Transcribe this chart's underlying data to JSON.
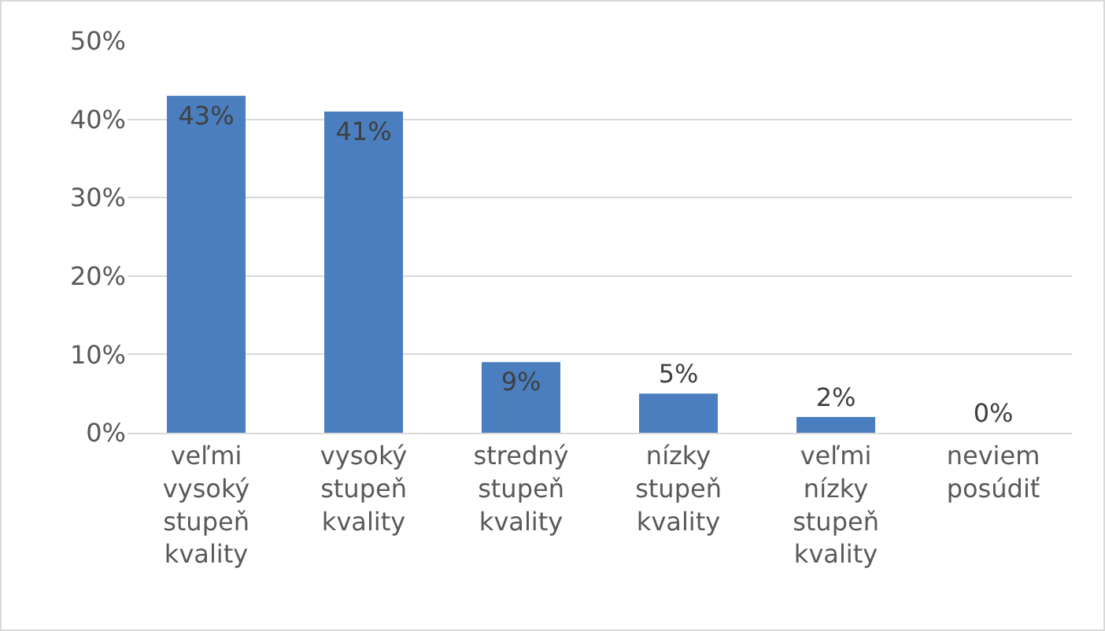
{
  "chart_data": {
    "type": "bar",
    "categories": [
      "veľmi vysoký stupeň kvality",
      "vysoký stupeň kvality",
      "stredný stupeň kvality",
      "nízky stupeň kvality",
      "veľmi nízky stupeň kvality",
      "neviem posúdiť"
    ],
    "values": [
      43,
      41,
      9,
      5,
      2,
      0
    ],
    "color": "#4a7ebf",
    "value_labels": [
      "43%",
      "41%",
      "9%",
      "5%",
      "2%",
      "0%"
    ],
    "ylim": [
      0,
      50
    ],
    "yticks": [
      {
        "value": 0,
        "label": "0%"
      },
      {
        "value": 10,
        "label": "10%"
      },
      {
        "value": 20,
        "label": "20%"
      },
      {
        "value": 30,
        "label": "30%"
      },
      {
        "value": 40,
        "label": "40%"
      },
      {
        "value": 50,
        "label": "50%"
      }
    ],
    "grid": "y",
    "legend": false
  }
}
